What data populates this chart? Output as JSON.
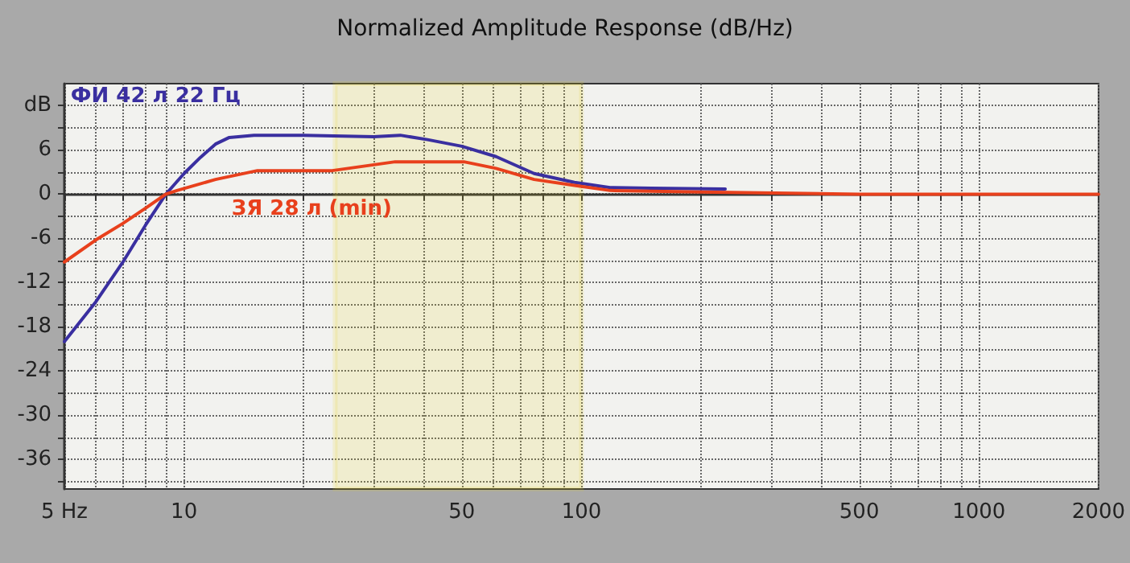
{
  "chart_data": {
    "type": "line",
    "title": "Normalized Amplitude Response (dB/Hz)",
    "log": "x",
    "grid": true,
    "legend": false,
    "marker": "none",
    "line_style": "solid",
    "xlim": [
      5,
      2000
    ],
    "xticks": [
      {
        "value": 5,
        "label": "5 Hz"
      },
      {
        "value": 6,
        "label": null
      },
      {
        "value": 7,
        "label": null
      },
      {
        "value": 8,
        "label": null
      },
      {
        "value": 9,
        "label": null
      },
      10,
      {
        "value": 20,
        "label": null
      },
      {
        "value": 30,
        "label": null
      },
      {
        "value": 40,
        "label": null
      },
      50,
      {
        "value": 60,
        "label": null
      },
      {
        "value": 70,
        "label": null
      },
      {
        "value": 80,
        "label": null
      },
      {
        "value": 90,
        "label": null
      },
      100,
      {
        "value": 200,
        "label": null
      },
      {
        "value": 300,
        "label": null
      },
      {
        "value": 400,
        "label": null
      },
      500,
      {
        "value": 600,
        "label": null
      },
      {
        "value": 700,
        "label": null
      },
      {
        "value": 800,
        "label": null
      },
      {
        "value": 900,
        "label": null
      },
      1000,
      2000
    ],
    "ylim": [
      -40,
      15
    ],
    "yticks": [
      {
        "value": 12,
        "label": "dB"
      },
      {
        "value": 9,
        "label": null
      },
      6,
      {
        "value": 3,
        "label": null
      },
      0,
      {
        "value": -3,
        "label": null
      },
      -6,
      {
        "value": -9,
        "label": null
      },
      -12,
      {
        "value": -15,
        "label": null
      },
      -18,
      {
        "value": -21,
        "label": null
      },
      -24,
      {
        "value": -27,
        "label": null
      },
      -30,
      {
        "value": -33,
        "label": null
      },
      -36,
      {
        "value": -39,
        "label": null
      }
    ],
    "bands": [
      {
        "axis": "x",
        "from": 24,
        "to": 100,
        "color": "#e6d21a"
      }
    ],
    "series": [
      {
        "name": "ФИ 42 л 22 Гц",
        "color": "#3a2fa0",
        "x": [
          5,
          6,
          7,
          8,
          9,
          10,
          11,
          12,
          13,
          15,
          20,
          30,
          35,
          41,
          50,
          61,
          76,
          96,
          118,
          150,
          230
        ],
        "values": [
          -20,
          -14.6,
          -9.3,
          -4.2,
          0,
          2.8,
          5,
          6.8,
          7.7,
          8,
          8,
          7.8,
          8,
          7.4,
          6.5,
          5.1,
          2.8,
          1.6,
          0.9,
          0.8,
          0.7
        ]
      },
      {
        "name": "ЗЯ 28 л (min)",
        "color": "#e8401c",
        "x": [
          5,
          6,
          7,
          8,
          9,
          9.6,
          12,
          15.3,
          23.6,
          34,
          50.6,
          61,
          76,
          96,
          118,
          200,
          500,
          1000,
          2000
        ],
        "values": [
          -9.2,
          -6.2,
          -4,
          -1.9,
          0,
          0.5,
          2,
          3.2,
          3.2,
          4.4,
          4.4,
          3.5,
          2,
          1.2,
          0.5,
          0.3,
          0,
          0,
          0
        ]
      }
    ]
  }
}
